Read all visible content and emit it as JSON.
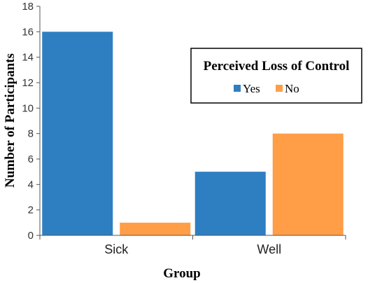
{
  "chart_data": {
    "type": "bar",
    "title": "",
    "xlabel": "Group",
    "ylabel": "Number of Participants",
    "categories": [
      "Sick",
      "Well"
    ],
    "series": [
      {
        "name": "Yes",
        "color": "#2E7EC2",
        "values": [
          16,
          5
        ]
      },
      {
        "name": "No",
        "color": "#FF9E47",
        "values": [
          1,
          8
        ]
      }
    ],
    "ylim": [
      0,
      18
    ],
    "yticks": [
      "0",
      "2",
      "4",
      "6",
      "8",
      "10",
      "12",
      "14",
      "16",
      "18"
    ],
    "grid": false,
    "legend": {
      "title": "Perceived Loss of Control",
      "placement": "top-right"
    }
  }
}
